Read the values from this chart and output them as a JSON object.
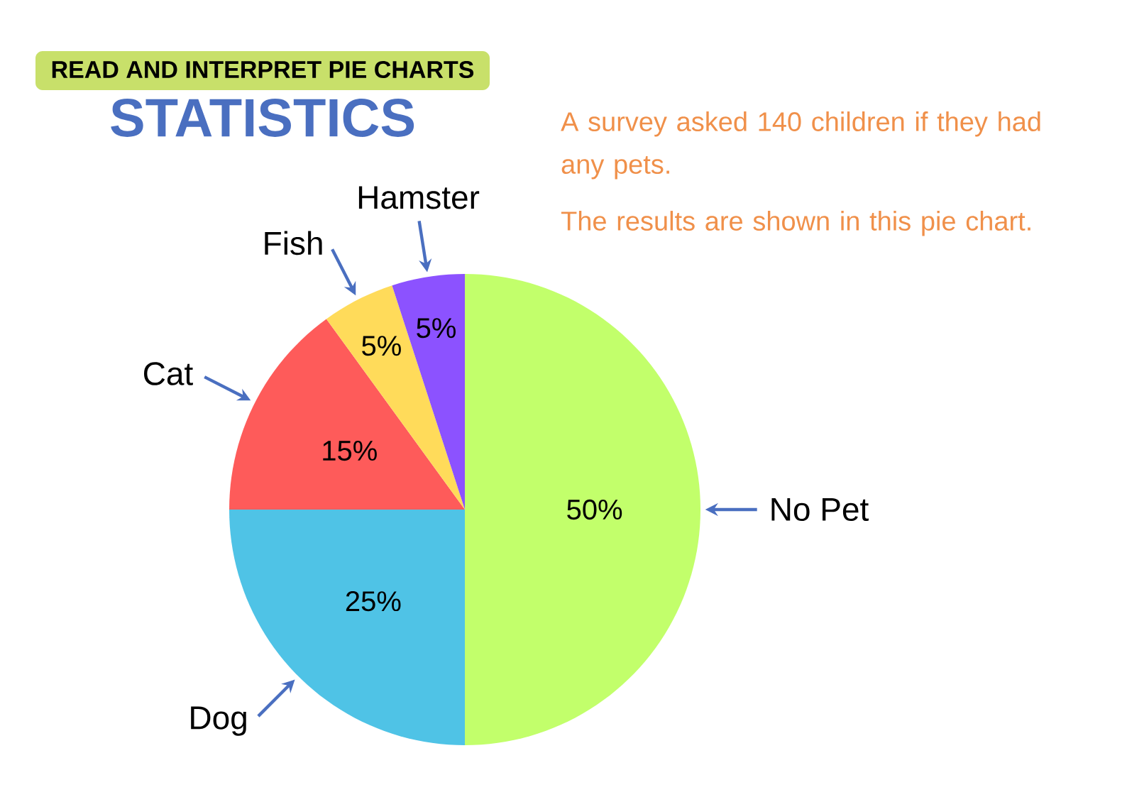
{
  "chart_data": {
    "type": "pie",
    "title": "STATISTICS",
    "subtitle": "READ AND INTERPRET PIE CHARTS",
    "categories": [
      "No Pet",
      "Dog",
      "Cat",
      "Fish",
      "Hamster"
    ],
    "values": [
      50,
      25,
      15,
      5,
      5
    ],
    "value_labels": [
      "50%",
      "25%",
      "15%",
      "5%",
      "5%"
    ],
    "colors": [
      "#c2ff6b",
      "#4fc3e6",
      "#fe5b5a",
      "#ffdb5a",
      "#8c52ff"
    ],
    "annotations": [
      "A survey asked 140 children if they had any pets.",
      "The results are shown in this pie chart."
    ]
  }
}
